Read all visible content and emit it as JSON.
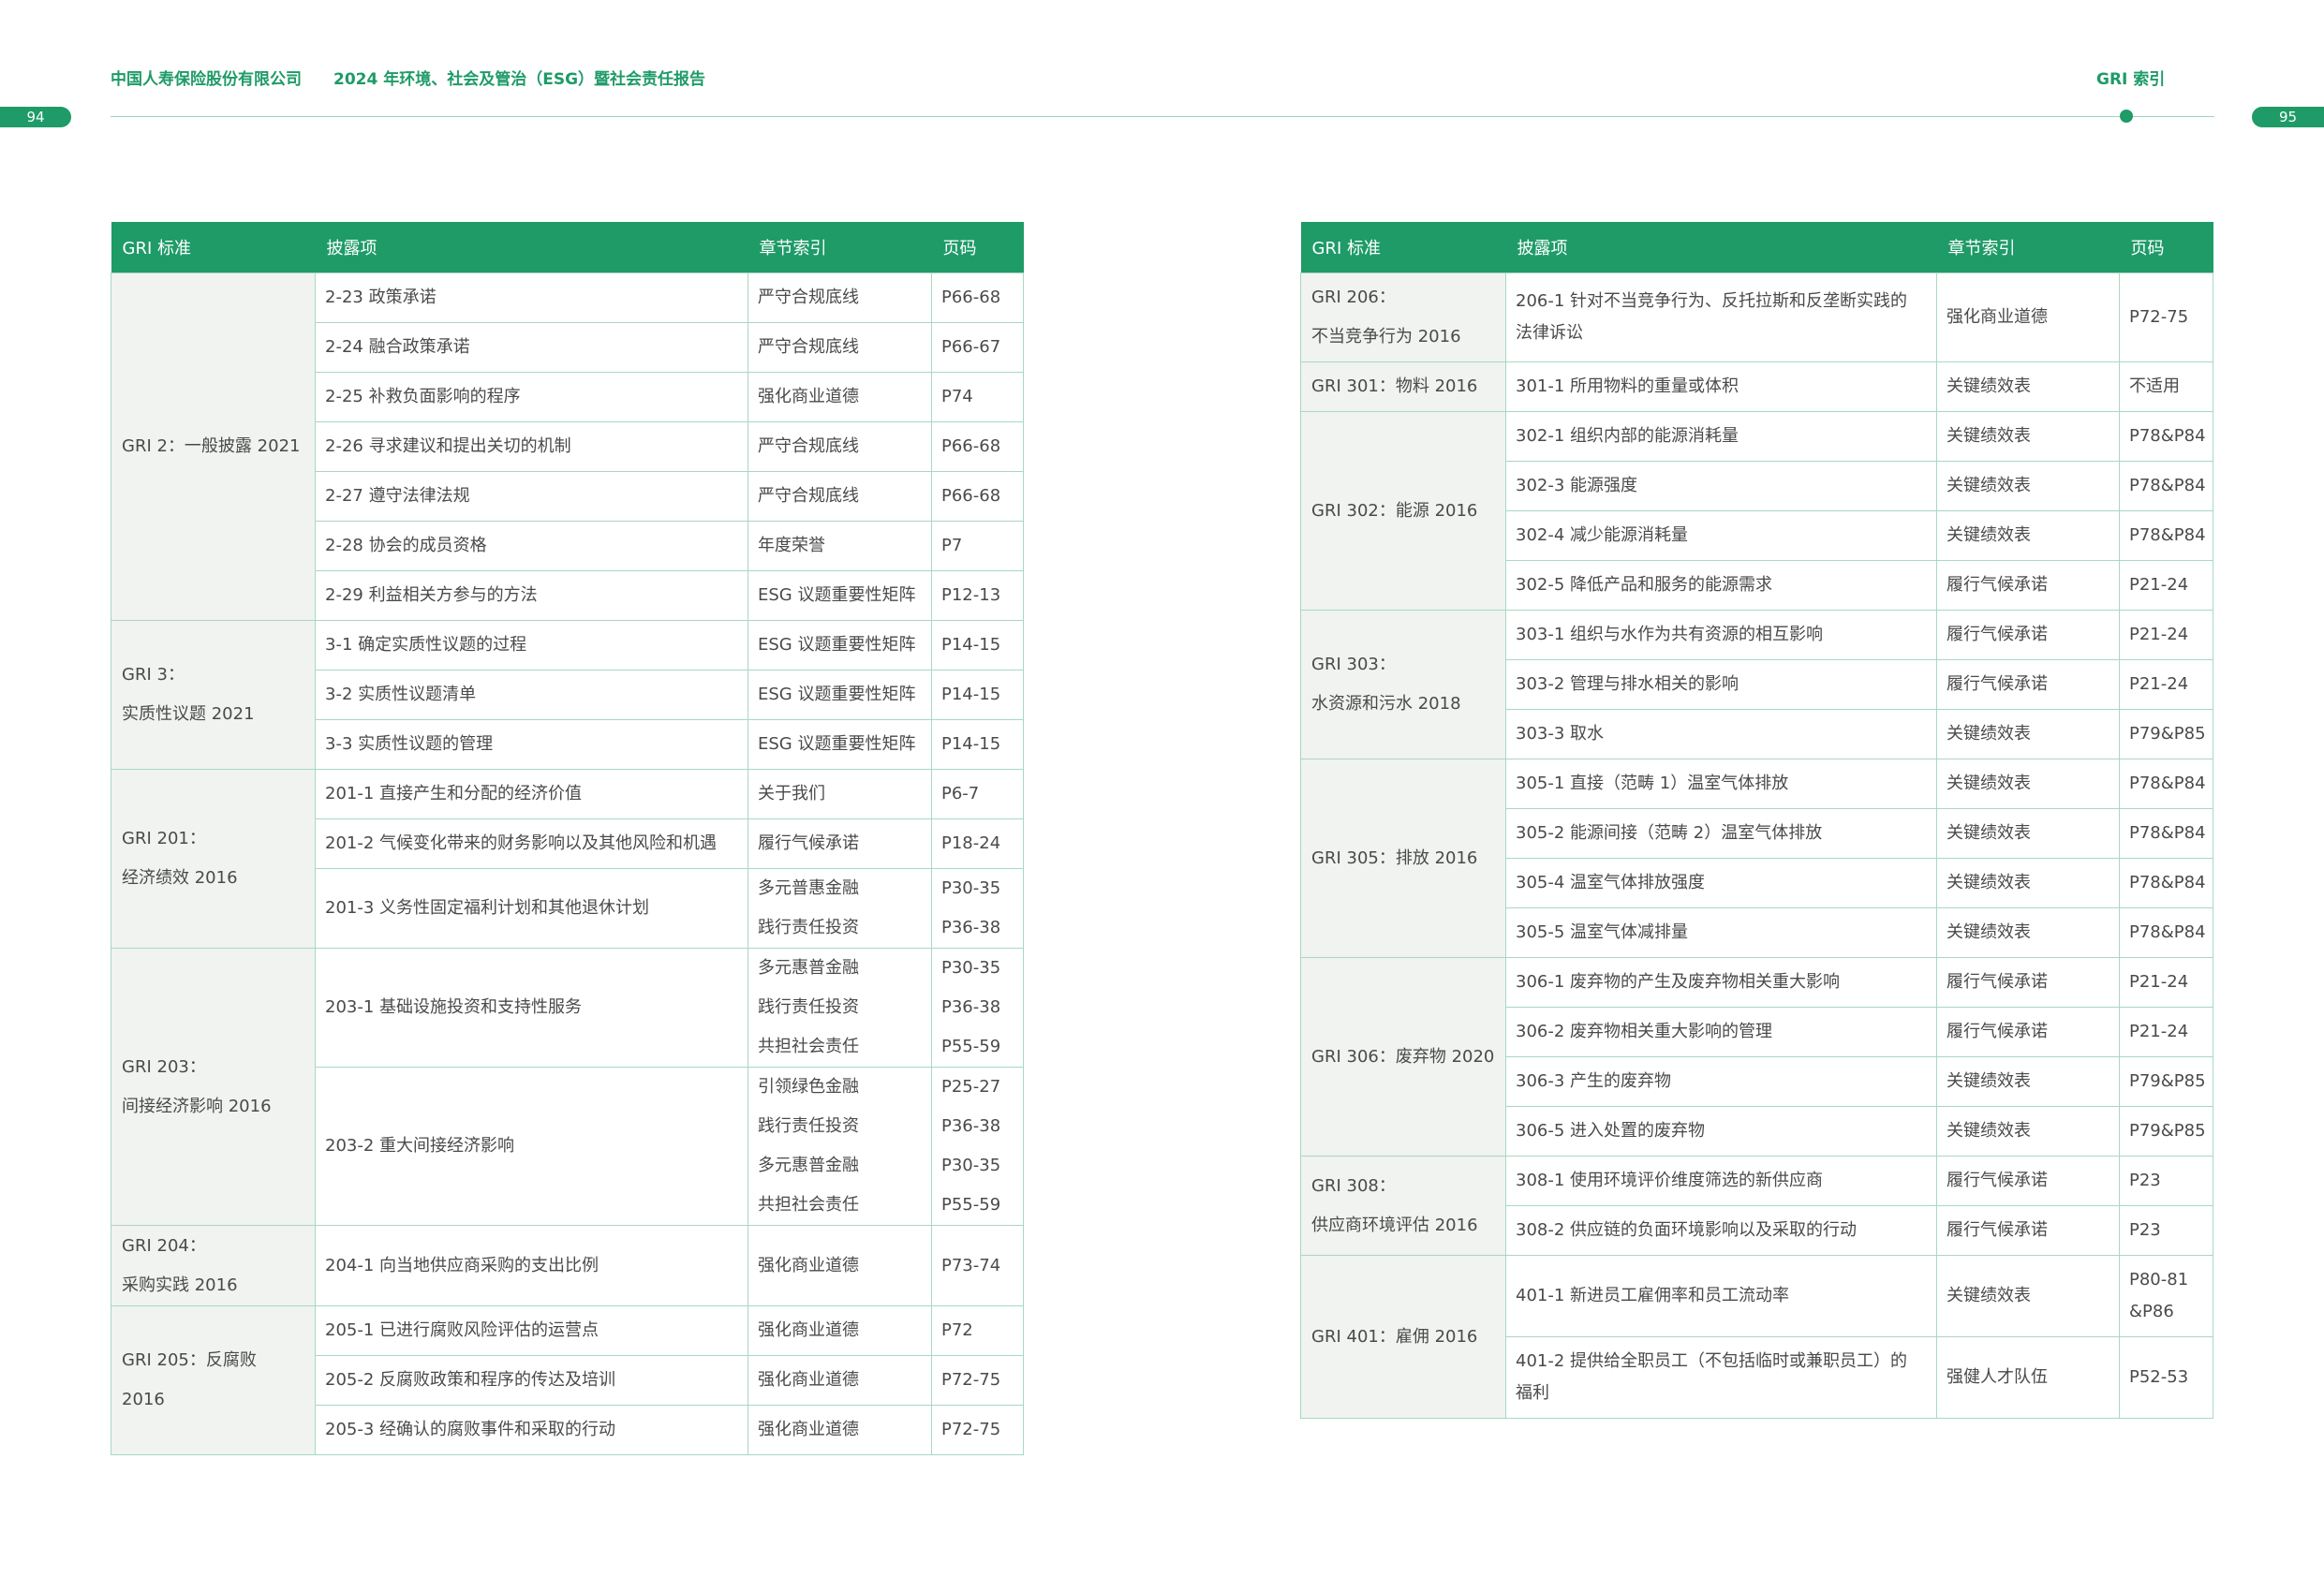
{
  "header": {
    "company": "中国人寿保险股份有限公司",
    "title": "2024 年环境、社会及管治（ESG）暨社会责任报告",
    "section": "GRI 索引",
    "page_left": "94",
    "page_right": "95"
  },
  "columns": [
    "GRI 标准",
    "披露项",
    "章节索引",
    "页码"
  ],
  "left_table": {
    "gri2": {
      "std": "GRI 2：一般披露 2021",
      "rows": [
        {
          "item": "2-23 政策承诺",
          "chapter": "严守合规底线",
          "page": "P66-68"
        },
        {
          "item": "2-24 融合政策承诺",
          "chapter": "严守合规底线",
          "page": "P66-67"
        },
        {
          "item": "2-25 补救负面影响的程序",
          "chapter": "强化商业道德",
          "page": "P74"
        },
        {
          "item": "2-26 寻求建议和提出关切的机制",
          "chapter": "严守合规底线",
          "page": "P66-68"
        },
        {
          "item": "2-27 遵守法律法规",
          "chapter": "严守合规底线",
          "page": "P66-68"
        },
        {
          "item": "2-28 协会的成员资格",
          "chapter": "年度荣誉",
          "page": "P7"
        },
        {
          "item": "2-29 利益相关方参与的方法",
          "chapter": "ESG 议题重要性矩阵",
          "page": "P12-13"
        }
      ]
    },
    "gri3": {
      "std1": "GRI 3：",
      "std2": "实质性议题 2021",
      "rows": [
        {
          "item": "3-1 确定实质性议题的过程",
          "chapter": "ESG 议题重要性矩阵",
          "page": "P14-15"
        },
        {
          "item": "3-2 实质性议题清单",
          "chapter": "ESG 议题重要性矩阵",
          "page": "P14-15"
        },
        {
          "item": "3-3 实质性议题的管理",
          "chapter": "ESG 议题重要性矩阵",
          "page": "P14-15"
        }
      ]
    },
    "gri201": {
      "std1": "GRI 201：",
      "std2": "经济绩效 2016",
      "r1": {
        "item": "201-1 直接产生和分配的经济价值",
        "chapter": "关于我们",
        "page": "P6-7"
      },
      "r2": {
        "item": "201-2 气候变化带来的财务影响以及其他风险和机遇",
        "chapter": "履行气候承诺",
        "page": "P18-24"
      },
      "r3": {
        "item": "201-3 义务性固定福利计划和其他退休计划",
        "chapter1": "多元普惠金融",
        "page1": "P30-35",
        "chapter2": "践行责任投资",
        "page2": "P36-38"
      }
    },
    "gri203": {
      "std1": "GRI 203：",
      "std2": "间接经济影响 2016",
      "r1": {
        "item": "203-1 基础设施投资和支持性服务",
        "chapter1": "多元惠普金融",
        "page1": "P30-35",
        "chapter2": "践行责任投资",
        "page2": "P36-38",
        "chapter3": "共担社会责任",
        "page3": "P55-59"
      },
      "r2": {
        "item": "203-2 重大间接经济影响",
        "chapter1": "引领绿色金融",
        "page1": "P25-27",
        "chapter2": "践行责任投资",
        "page2": "P36-38",
        "chapter3": "多元惠普金融",
        "page3": "P30-35",
        "chapter4": "共担社会责任",
        "page4": "P55-59"
      }
    },
    "gri204": {
      "std1": "GRI 204：",
      "std2": "采购实践 2016",
      "r1": {
        "item": "204-1 向当地供应商采购的支出比例",
        "chapter": "强化商业道德",
        "page": "P73-74"
      }
    },
    "gri205": {
      "std": "GRI 205：反腐败 2016",
      "rows": [
        {
          "item": "205-1 已进行腐败风险评估的运营点",
          "chapter": "强化商业道德",
          "page": "P72"
        },
        {
          "item": "205-2 反腐败政策和程序的传达及培训",
          "chapter": "强化商业道德",
          "page": "P72-75"
        },
        {
          "item": "205-3 经确认的腐败事件和采取的行动",
          "chapter": "强化商业道德",
          "page": "P72-75"
        }
      ]
    }
  },
  "right_table": {
    "gri206": {
      "std1": "GRI 206：",
      "std2": "不当竞争行为 2016",
      "item1": "206-1 针对不当竞争行为、反托拉斯和反垄断实践的",
      "item2": "法律诉讼",
      "chapter": "强化商业道德",
      "page": "P72-75"
    },
    "gri301": {
      "std": "GRI 301：物料 2016",
      "item": "301-1 所用物料的重量或体积",
      "chapter": "关键绩效表",
      "page": "不适用"
    },
    "gri302": {
      "std": "GRI 302：能源 2016",
      "rows": [
        {
          "item": "302-1 组织内部的能源消耗量",
          "chapter": "关键绩效表",
          "page": "P78&P84"
        },
        {
          "item": "302-3 能源强度",
          "chapter": "关键绩效表",
          "page": "P78&P84"
        },
        {
          "item": "302-4 减少能源消耗量",
          "chapter": "关键绩效表",
          "page": "P78&P84"
        },
        {
          "item": "302-5 降低产品和服务的能源需求",
          "chapter": "履行气候承诺",
          "page": "P21-24"
        }
      ]
    },
    "gri303": {
      "std1": "GRI 303：",
      "std2": "水资源和污水 2018",
      "rows": [
        {
          "item": "303-1 组织与水作为共有资源的相互影响",
          "chapter": "履行气候承诺",
          "page": "P21-24"
        },
        {
          "item": "303-2 管理与排水相关的影响",
          "chapter": "履行气候承诺",
          "page": "P21-24"
        },
        {
          "item": "303-3 取水",
          "chapter": "关键绩效表",
          "page": "P79&P85"
        }
      ]
    },
    "gri305": {
      "std": "GRI 305：排放 2016",
      "rows": [
        {
          "item": "305-1 直接（范畴 1）温室气体排放",
          "chapter": "关键绩效表",
          "page": "P78&P84"
        },
        {
          "item": "305-2 能源间接（范畴 2）温室气体排放",
          "chapter": "关键绩效表",
          "page": "P78&P84"
        },
        {
          "item": "305-4 温室气体排放强度",
          "chapter": "关键绩效表",
          "page": "P78&P84"
        },
        {
          "item": "305-5 温室气体减排量",
          "chapter": "关键绩效表",
          "page": "P78&P84"
        }
      ]
    },
    "gri306": {
      "std": "GRI 306：废弃物 2020",
      "rows": [
        {
          "item": "306-1 废弃物的产生及废弃物相关重大影响",
          "chapter": "履行气候承诺",
          "page": "P21-24"
        },
        {
          "item": "306-2 废弃物相关重大影响的管理",
          "chapter": "履行气候承诺",
          "page": "P21-24"
        },
        {
          "item": "306-3 产生的废弃物",
          "chapter": "关键绩效表",
          "page": "P79&P85"
        },
        {
          "item": "306-5 进入处置的废弃物",
          "chapter": "关键绩效表",
          "page": "P79&P85"
        }
      ]
    },
    "gri308": {
      "std1": "GRI 308：",
      "std2": "供应商环境评估 2016",
      "rows": [
        {
          "item": "308-1 使用环境评价维度筛选的新供应商",
          "chapter": "履行气候承诺",
          "page": "P23"
        },
        {
          "item": "308-2 供应链的负面环境影响以及采取的行动",
          "chapter": "履行气候承诺",
          "page": "P23"
        }
      ]
    },
    "gri401": {
      "std": "GRI 401：雇佣 2016",
      "r1": {
        "item": "401-1 新进员工雇佣率和员工流动率",
        "chapter": "关键绩效表",
        "page1": "P80-81",
        "page2": "&P86"
      },
      "r2": {
        "item1": "401-2 提供给全职员工（不包括临时或兼职员工）的",
        "item2": "福利",
        "chapter": "强健人才队伍",
        "page": "P52-53"
      }
    }
  }
}
